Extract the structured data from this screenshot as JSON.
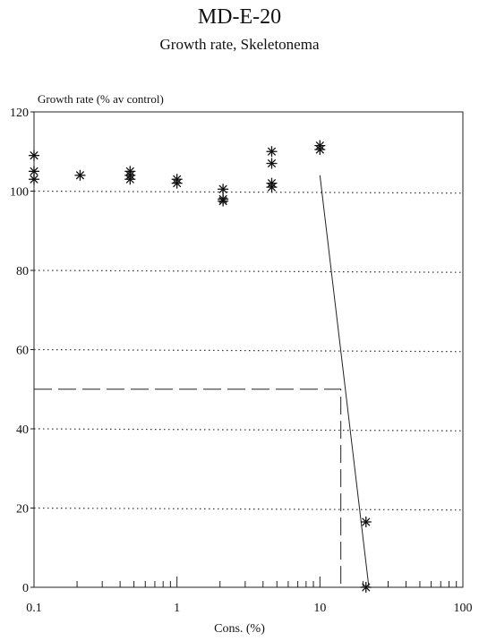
{
  "chart_data": {
    "type": "scatter",
    "title": "MD-E-20",
    "subtitle": "Growth rate, Skeletonema",
    "xlabel": "Cons. (%)",
    "ylabel": "Growth rate (% av control)",
    "x_scale": "log",
    "xlim": [
      0.1,
      100
    ],
    "ylim": [
      0,
      120
    ],
    "x_ticks": [
      "0.1",
      "1",
      "10",
      "100"
    ],
    "y_ticks": [
      "0",
      "20",
      "40",
      "60",
      "80",
      "100",
      "120"
    ],
    "series": [
      {
        "marker": "asterisk",
        "points": [
          [
            0.1,
            109
          ],
          [
            0.1,
            105
          ],
          [
            0.1,
            103
          ],
          [
            0.21,
            104
          ],
          [
            0.47,
            105
          ],
          [
            0.47,
            104
          ],
          [
            0.47,
            103
          ],
          [
            1.0,
            103
          ],
          [
            1.0,
            102
          ],
          [
            2.1,
            100.5
          ],
          [
            2.1,
            98
          ],
          [
            2.1,
            97.5
          ],
          [
            4.6,
            110
          ],
          [
            4.6,
            107
          ],
          [
            4.6,
            102
          ],
          [
            4.6,
            101
          ],
          [
            10,
            111.5
          ],
          [
            10,
            110.5
          ],
          [
            21,
            16.5
          ],
          [
            21,
            0
          ]
        ]
      }
    ],
    "reference_lines": [
      {
        "style": "dotted",
        "y": [
          100,
          99.5
        ]
      },
      {
        "style": "dotted",
        "y": [
          80,
          79.5
        ]
      },
      {
        "style": "dotted",
        "y": [
          60,
          59.5
        ]
      },
      {
        "style": "dotted",
        "y": [
          40,
          39.5
        ]
      },
      {
        "style": "dotted",
        "y": [
          20,
          19.5
        ]
      }
    ],
    "fit_line": {
      "style": "solid",
      "points": [
        [
          10,
          104
        ],
        [
          22,
          0
        ]
      ]
    },
    "ec50_marker": {
      "style": "dashed",
      "x": 14,
      "y": 50
    }
  }
}
